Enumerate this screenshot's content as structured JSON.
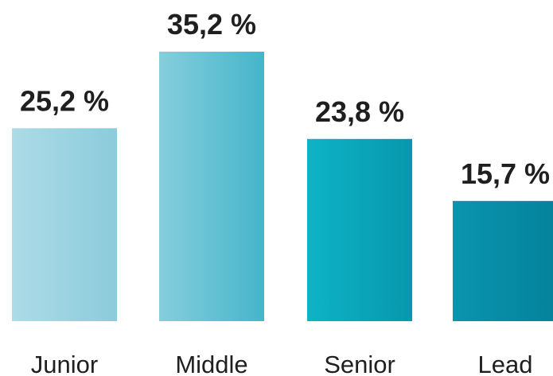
{
  "chart_data": {
    "type": "bar",
    "categories": [
      "Junior",
      "Middle",
      "Senior",
      "Lead"
    ],
    "values": [
      25.2,
      35.2,
      23.8,
      15.7
    ],
    "data_labels": [
      "25,2 %",
      "35,2 %",
      "23,8 %",
      "15,7 %"
    ],
    "unit": "%",
    "title": "",
    "xlabel": "",
    "ylabel": "",
    "ylim": [
      0,
      35.2
    ],
    "grid": false,
    "legend": "none",
    "colors": [
      [
        "#acdce6",
        "#8ccbdb"
      ],
      [
        "#86cedc",
        "#45b5ca"
      ],
      [
        "#0eb3c6",
        "#0797ac"
      ],
      [
        "#0a94ad",
        "#05829c"
      ]
    ]
  }
}
